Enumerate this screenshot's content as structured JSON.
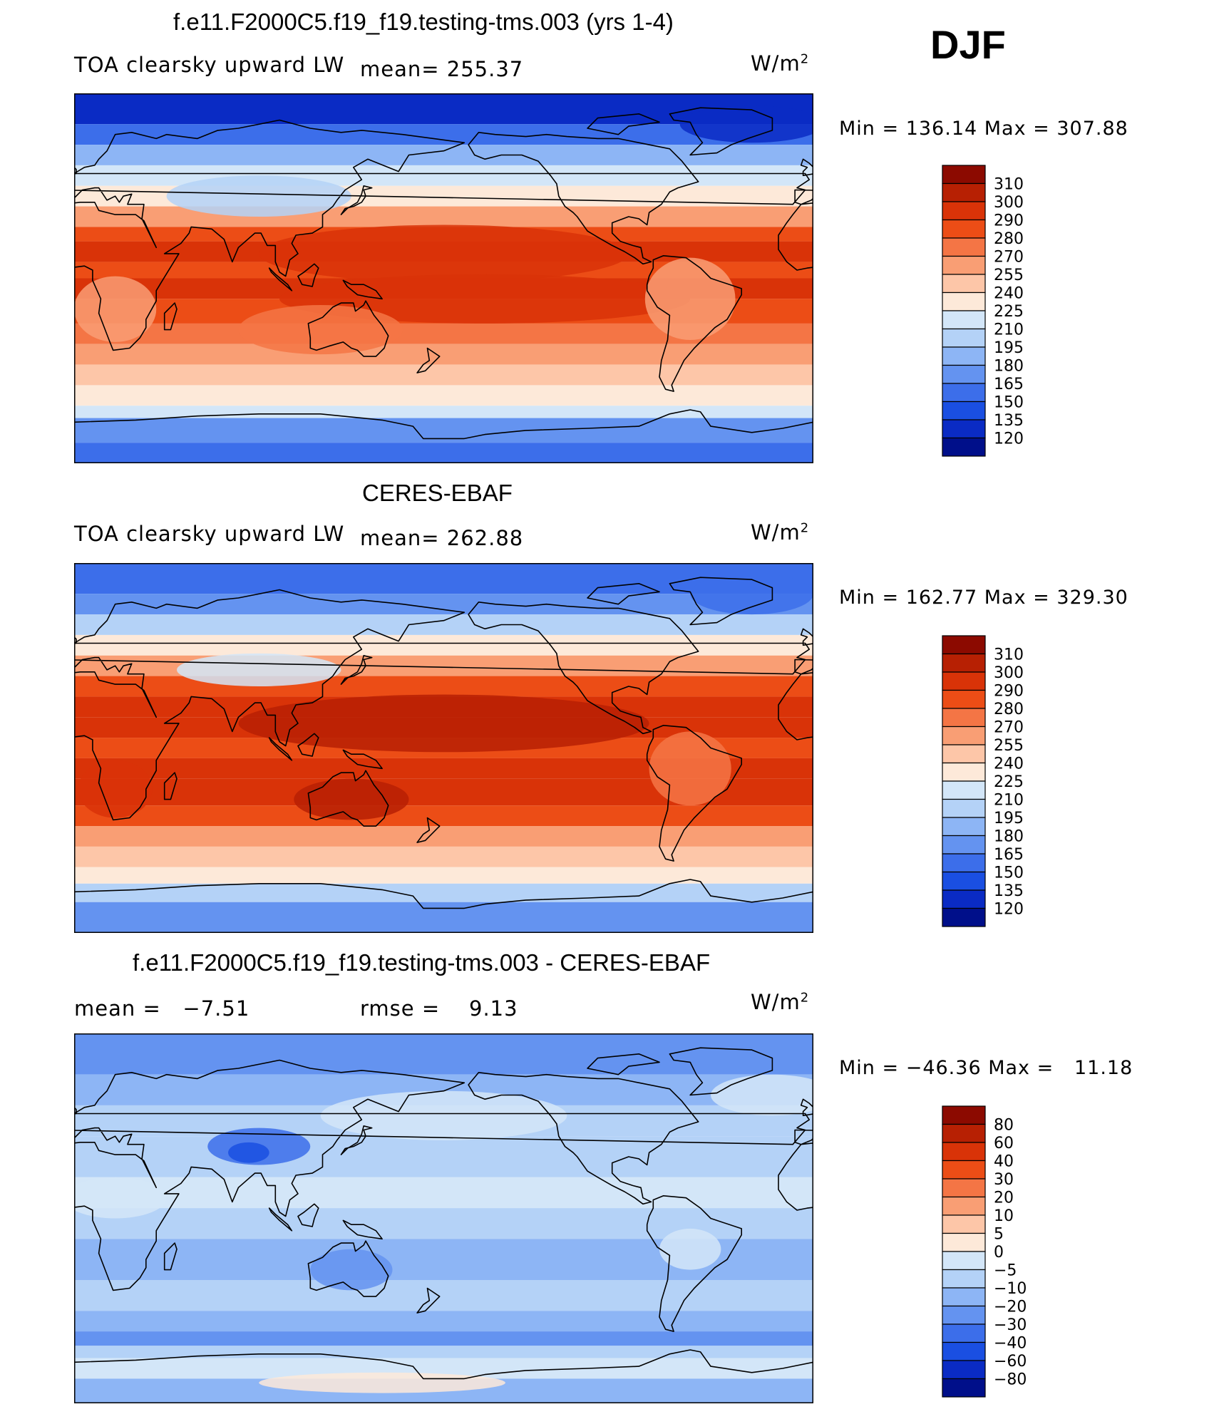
{
  "season": "DJF",
  "units_text": "W/m",
  "units_sup": "2",
  "panels": [
    {
      "title": "f.e11.F2000C5.f19_f19.testing-tms.003 (yrs 1-4)",
      "left_label": "TOA clearsky upward LW",
      "stat_label": "mean= 255.37",
      "minmax": "Min = 136.14 Max = 307.88",
      "field": "model",
      "colorbar": {
        "labels": [
          "310",
          "300",
          "290",
          "280",
          "270",
          "255",
          "240",
          "225",
          "210",
          "195",
          "180",
          "165",
          "150",
          "135",
          "120"
        ],
        "colors": [
          "#8c0a00",
          "#b72003",
          "#d93308",
          "#ec4d16",
          "#f47545",
          "#f99e74",
          "#fdc6a8",
          "#fde9d9",
          "#d3e6f8",
          "#b4d2f7",
          "#8db5f5",
          "#6493f0",
          "#3c6eea",
          "#1a4fe2",
          "#0a2bc4",
          "#000f8a"
        ]
      }
    },
    {
      "title": "CERES-EBAF",
      "left_label": "TOA clearsky upward LW",
      "stat_label": "mean= 262.88",
      "minmax": "Min = 162.77 Max = 329.30",
      "field": "obs",
      "colorbar": {
        "labels": [
          "310",
          "300",
          "290",
          "280",
          "270",
          "255",
          "240",
          "225",
          "210",
          "195",
          "180",
          "165",
          "150",
          "135",
          "120"
        ],
        "colors": [
          "#8c0a00",
          "#b72003",
          "#d93308",
          "#ec4d16",
          "#f47545",
          "#f99e74",
          "#fdc6a8",
          "#fde9d9",
          "#d3e6f8",
          "#b4d2f7",
          "#8db5f5",
          "#6493f0",
          "#3c6eea",
          "#1a4fe2",
          "#0a2bc4",
          "#000f8a"
        ]
      }
    },
    {
      "title": "f.e11.F2000C5.f19_f19.testing-tms.003 - CERES-EBAF",
      "left_label": "mean =   −7.51",
      "stat_label": "rmse =    9.13",
      "minmax": "Min = −46.36 Max =   11.18",
      "field": "diff",
      "colorbar": {
        "labels": [
          "80",
          "60",
          "40",
          "30",
          "20",
          "10",
          "5",
          "0",
          "−5",
          "−10",
          "−20",
          "−30",
          "−40",
          "−60",
          "−80"
        ],
        "colors": [
          "#8c0a00",
          "#b72003",
          "#d93308",
          "#ec4d16",
          "#f47545",
          "#f99e74",
          "#fdc6a8",
          "#fde9d9",
          "#d3e6f8",
          "#b4d2f7",
          "#8db5f5",
          "#6493f0",
          "#3c6eea",
          "#1a4fe2",
          "#0a2bc4",
          "#000f8a"
        ]
      }
    }
  ]
}
